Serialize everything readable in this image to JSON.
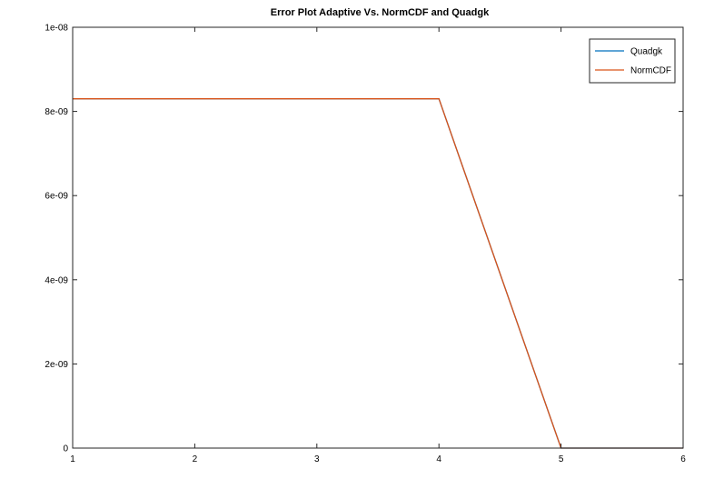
{
  "chart_data": {
    "type": "line",
    "title": "Error Plot Adaptive Vs. NormCDF and Quadgk",
    "xlabel": "",
    "ylabel": "",
    "xlim": [
      1,
      6
    ],
    "ylim": [
      0,
      1e-08
    ],
    "x_ticks": [
      1,
      2,
      3,
      4,
      5,
      6
    ],
    "x_tick_labels": [
      "1",
      "2",
      "3",
      "4",
      "5",
      "6"
    ],
    "y_ticks": [
      0,
      2e-09,
      4e-09,
      6e-09,
      8e-09,
      1e-08
    ],
    "y_tick_labels": [
      "0",
      "2e-09",
      "4e-09",
      "6e-09",
      "8e-09",
      "1e-08"
    ],
    "grid": false,
    "legend_position": "top-right",
    "x": [
      1,
      2,
      3,
      4,
      5,
      6
    ],
    "series": [
      {
        "name": "Quadgk",
        "color": "#0072bd",
        "values": [
          8.3e-09,
          8.3e-09,
          8.3e-09,
          8.3e-09,
          0,
          0
        ]
      },
      {
        "name": "NormCDF",
        "color": "#d95319",
        "values": [
          8.3e-09,
          8.3e-09,
          8.3e-09,
          8.3e-09,
          0,
          0
        ]
      }
    ]
  }
}
